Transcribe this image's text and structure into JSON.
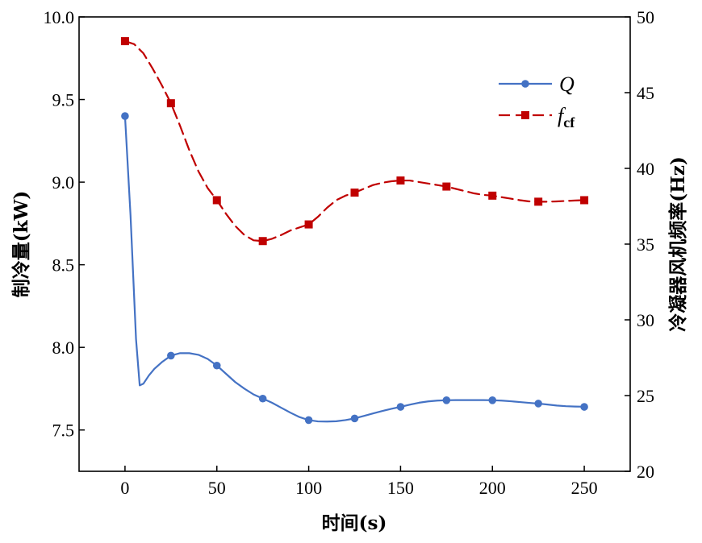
{
  "chart_data": {
    "type": "line",
    "xlabel": "时间(s)",
    "ylabel_left": "制冷量(kW)",
    "ylabel_right": "冷凝器风机频率(Hz)",
    "xlim": [
      -25,
      275
    ],
    "ylim_left": [
      7.25,
      10.0
    ],
    "ylim_right": [
      20,
      50
    ],
    "xticks": [
      0,
      50,
      100,
      150,
      200,
      250
    ],
    "xtick_labels": [
      "0",
      "50",
      "100",
      "150",
      "200",
      "250"
    ],
    "yticks_left": [
      7.5,
      8.0,
      8.5,
      9.0,
      9.5,
      10.0
    ],
    "ytick_labels_left": [
      "7.5",
      "8.0",
      "8.5",
      "9.0",
      "9.5",
      "10.0"
    ],
    "yticks_right": [
      20,
      25,
      30,
      35,
      40,
      45,
      50
    ],
    "ytick_labels_right": [
      "20",
      "25",
      "30",
      "35",
      "40",
      "45",
      "50"
    ],
    "grid": false,
    "legend_position": "top-right",
    "series": [
      {
        "name": "Q",
        "axis": "left",
        "color": "#4472C4",
        "line_style": "solid",
        "marker": "circle",
        "x": [
          0,
          25,
          50,
          75,
          100,
          125,
          150,
          175,
          200,
          225,
          250
        ],
        "values": [
          9.4,
          7.95,
          7.89,
          7.69,
          7.56,
          7.57,
          7.64,
          7.68,
          7.68,
          7.66,
          7.64
        ],
        "curve_x": [
          0,
          3,
          6,
          8,
          10,
          13,
          16,
          20,
          25,
          30,
          35,
          40,
          45,
          50,
          55,
          60,
          65,
          70,
          75,
          80,
          85,
          90,
          95,
          100,
          105,
          110,
          115,
          120,
          125,
          130,
          135,
          140,
          145,
          150,
          155,
          160,
          165,
          170,
          175,
          180,
          185,
          190,
          195,
          200,
          205,
          210,
          215,
          220,
          225,
          230,
          235,
          240,
          245,
          250
        ],
        "curve_values": [
          9.4,
          8.8,
          8.05,
          7.77,
          7.78,
          7.83,
          7.87,
          7.91,
          7.95,
          7.965,
          7.965,
          7.955,
          7.93,
          7.89,
          7.84,
          7.79,
          7.75,
          7.715,
          7.69,
          7.665,
          7.635,
          7.605,
          7.578,
          7.56,
          7.552,
          7.551,
          7.553,
          7.56,
          7.57,
          7.585,
          7.6,
          7.615,
          7.628,
          7.64,
          7.653,
          7.665,
          7.673,
          7.678,
          7.68,
          7.681,
          7.681,
          7.681,
          7.681,
          7.68,
          7.678,
          7.674,
          7.669,
          7.664,
          7.66,
          7.654,
          7.648,
          7.644,
          7.642,
          7.641
        ]
      },
      {
        "name": "f_cf",
        "label_main": "f",
        "label_sub": "cf",
        "axis": "right",
        "color": "#C00000",
        "line_style": "dashed",
        "marker": "square",
        "x": [
          0,
          25,
          50,
          75,
          100,
          125,
          150,
          175,
          200,
          225,
          250
        ],
        "values": [
          48.4,
          44.3,
          37.9,
          35.2,
          36.3,
          38.4,
          39.2,
          38.8,
          38.2,
          37.8,
          37.9
        ],
        "curve_x": [
          0,
          5,
          10,
          15,
          20,
          25,
          30,
          35,
          40,
          45,
          50,
          55,
          60,
          65,
          70,
          75,
          80,
          85,
          90,
          95,
          100,
          105,
          110,
          115,
          120,
          125,
          130,
          135,
          140,
          145,
          150,
          155,
          160,
          165,
          170,
          175,
          180,
          185,
          190,
          195,
          200,
          205,
          210,
          215,
          220,
          225,
          230,
          235,
          240,
          245,
          250
        ],
        "curve_values": [
          48.4,
          48.2,
          47.6,
          46.6,
          45.5,
          44.3,
          42.8,
          41.2,
          39.8,
          38.7,
          37.9,
          37.0,
          36.2,
          35.6,
          35.25,
          35.2,
          35.35,
          35.6,
          35.9,
          36.1,
          36.3,
          36.8,
          37.4,
          37.9,
          38.2,
          38.4,
          38.65,
          38.9,
          39.05,
          39.15,
          39.2,
          39.2,
          39.1,
          39.0,
          38.9,
          38.8,
          38.65,
          38.5,
          38.35,
          38.25,
          38.2,
          38.1,
          38.0,
          37.9,
          37.82,
          37.8,
          37.8,
          37.82,
          37.85,
          37.88,
          37.9
        ]
      }
    ]
  }
}
